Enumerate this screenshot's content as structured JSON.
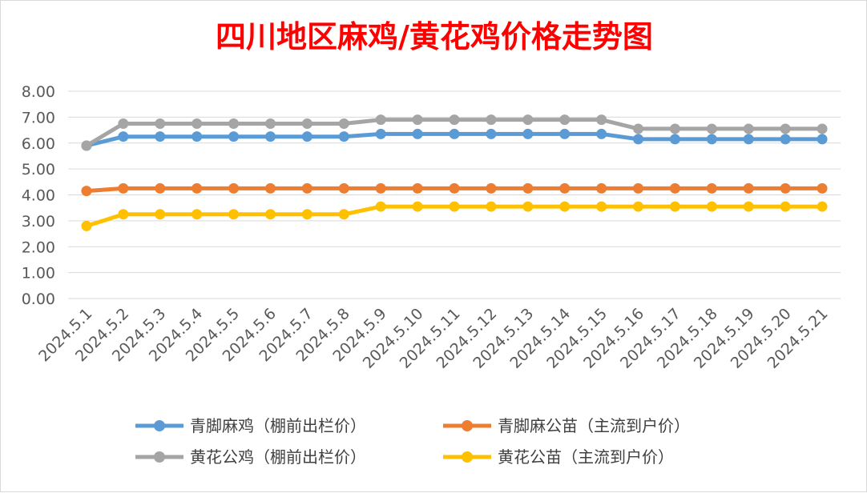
{
  "chart_data": {
    "type": "line",
    "title": "四川地区麻鸡/黄花鸡价格走势图",
    "categories": [
      "2024.5.1",
      "2024.5.2",
      "2024.5.3",
      "2024.5.4",
      "2024.5.5",
      "2024.5.6",
      "2024.5.7",
      "2024.5.8",
      "2024.5.9",
      "2024.5.10",
      "2024.5.11",
      "2024.5.12",
      "2024.5.13",
      "2024.5.14",
      "2024.5.15",
      "2024.5.16",
      "2024.5.17",
      "2024.5.18",
      "2024.5.19",
      "2024.5.20",
      "2024.5.21"
    ],
    "y_ticks": [
      "0.00",
      "1.00",
      "2.00",
      "3.00",
      "4.00",
      "5.00",
      "6.00",
      "7.00",
      "8.00"
    ],
    "ylim": [
      0,
      8
    ],
    "grid": true,
    "legend_position": "bottom",
    "series": [
      {
        "name": "青脚麻鸡（棚前出栏价）",
        "color": "#5b9bd5",
        "values": [
          5.9,
          6.25,
          6.25,
          6.25,
          6.25,
          6.25,
          6.25,
          6.25,
          6.35,
          6.35,
          6.35,
          6.35,
          6.35,
          6.35,
          6.35,
          6.15,
          6.15,
          6.15,
          6.15,
          6.15,
          6.15
        ]
      },
      {
        "name": "青脚麻公苗（主流到户价）",
        "color": "#ed7d31",
        "values": [
          4.15,
          4.25,
          4.25,
          4.25,
          4.25,
          4.25,
          4.25,
          4.25,
          4.25,
          4.25,
          4.25,
          4.25,
          4.25,
          4.25,
          4.25,
          4.25,
          4.25,
          4.25,
          4.25,
          4.25,
          4.25
        ]
      },
      {
        "name": "黄花公鸡（棚前出栏价）",
        "color": "#a5a5a5",
        "values": [
          5.9,
          6.75,
          6.75,
          6.75,
          6.75,
          6.75,
          6.75,
          6.75,
          6.9,
          6.9,
          6.9,
          6.9,
          6.9,
          6.9,
          6.9,
          6.55,
          6.55,
          6.55,
          6.55,
          6.55,
          6.55
        ]
      },
      {
        "name": "黄花公苗（主流到户价）",
        "color": "#ffc000",
        "values": [
          2.8,
          3.25,
          3.25,
          3.25,
          3.25,
          3.25,
          3.25,
          3.25,
          3.55,
          3.55,
          3.55,
          3.55,
          3.55,
          3.55,
          3.55,
          3.55,
          3.55,
          3.55,
          3.55,
          3.55,
          3.55
        ]
      }
    ]
  }
}
